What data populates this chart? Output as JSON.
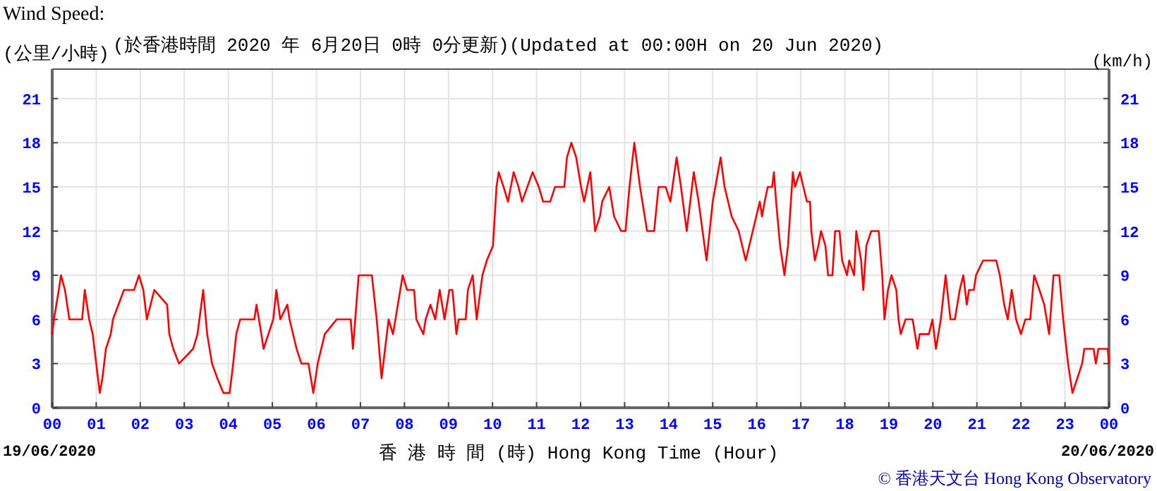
{
  "chart_data": {
    "type": "line",
    "title": "Wind Speed:",
    "subtitle": "(於香港時間 2020 年 6月20日 0時 0分更新)(Updated at 00:00H on 20 Jun 2020)",
    "ylabel": "(公里/小時)",
    "y2label": "(km/h)",
    "xlabel": "香 港 時 間 (時) Hong Kong Time (Hour)",
    "annotations": [
      "19/06/2020",
      "20/06/2020",
      "© 香港天文台 Hong Kong Observatory"
    ],
    "x": [
      0,
      0.04,
      0.15,
      0.2,
      0.29,
      0.39,
      0.68,
      0.74,
      0.84,
      0.92,
      1.0,
      1.08,
      1.14,
      1.22,
      1.33,
      1.38,
      1.63,
      1.86,
      1.97,
      2.07,
      2.15,
      2.32,
      2.61,
      2.66,
      2.75,
      2.88,
      3.2,
      3.3,
      3.43,
      3.52,
      3.63,
      3.75,
      3.89,
      4.03,
      4.11,
      4.18,
      4.27,
      4.59,
      4.64,
      4.75,
      4.8,
      4.91,
      5.02,
      5.09,
      5.18,
      5.34,
      5.39,
      5.55,
      5.66,
      5.82,
      5.93,
      6.03,
      6.19,
      6.46,
      6.78,
      6.83,
      6.96,
      7.26,
      7.37,
      7.48,
      7.64,
      7.74,
      7.96,
      8.06,
      8.11,
      8.22,
      8.27,
      8.43,
      8.48,
      8.59,
      8.7,
      8.8,
      8.91,
      9.02,
      9.09,
      9.18,
      9.23,
      9.39,
      9.44,
      9.55,
      9.64,
      9.77,
      9.87,
      10.01,
      10.09,
      10.14,
      10.25,
      10.35,
      10.48,
      10.59,
      10.67,
      10.91,
      11.05,
      11.15,
      11.31,
      11.42,
      11.63,
      11.69,
      11.79,
      11.9,
      12.01,
      12.08,
      12.22,
      12.33,
      12.44,
      12.49,
      12.65,
      12.76,
      12.92,
      13.02,
      13.11,
      13.22,
      13.35,
      13.51,
      13.67,
      13.77,
      13.93,
      14.04,
      14.18,
      14.28,
      14.41,
      14.57,
      14.68,
      14.86,
      15.0,
      15.18,
      15.27,
      15.43,
      15.59,
      15.75,
      15.91,
      16.07,
      16.12,
      16.18,
      16.25,
      16.35,
      16.39,
      16.44,
      16.53,
      16.63,
      16.71,
      16.82,
      16.87,
      16.98,
      17.06,
      17.14,
      17.21,
      17.24,
      17.32,
      17.4,
      17.46,
      17.56,
      17.62,
      17.72,
      17.78,
      17.88,
      17.94,
      18.05,
      18.1,
      18.21,
      18.26,
      18.37,
      18.42,
      18.49,
      18.6,
      18.77,
      18.85,
      18.9,
      18.98,
      19.06,
      19.17,
      19.22,
      19.27,
      19.38,
      19.54,
      19.65,
      19.7,
      19.91,
      19.99,
      20.07,
      20.18,
      20.29,
      20.4,
      20.5,
      20.61,
      20.69,
      20.77,
      20.82,
      20.93,
      20.98,
      21.14,
      21.44,
      21.52,
      21.62,
      21.7,
      21.79,
      21.89,
      22.0,
      22.1,
      22.21,
      22.3,
      22.42,
      22.53,
      22.64,
      22.74,
      22.87,
      22.96,
      23.07,
      23.17,
      23.28,
      23.39,
      23.44,
      23.65,
      23.7,
      23.76,
      23.97,
      24.0
    ],
    "series": [
      {
        "color": "#ff0000",
        "values": [
          5,
          6,
          8,
          9,
          8,
          6,
          6,
          8,
          6,
          5,
          3,
          1,
          2,
          4,
          5,
          6,
          8,
          8,
          9,
          8,
          6,
          8,
          7,
          5,
          4,
          3,
          4,
          5,
          8,
          5,
          3,
          2,
          1,
          1,
          3,
          5,
          6,
          6,
          7,
          5,
          4,
          5,
          6,
          8,
          6,
          7,
          6,
          4,
          3,
          3,
          1,
          3,
          5,
          6,
          6,
          4,
          9,
          9,
          6,
          2,
          6,
          5,
          9,
          8,
          8,
          8,
          6,
          5,
          6,
          7,
          6,
          8,
          6,
          8,
          8,
          5,
          6,
          6,
          8,
          9,
          6,
          9,
          10,
          11,
          15,
          16,
          15,
          14,
          16,
          15,
          14,
          16,
          15,
          14,
          14,
          15,
          15,
          17,
          18,
          17,
          15,
          14,
          16,
          12,
          13,
          14,
          15,
          13,
          12,
          12,
          15,
          18,
          15,
          12,
          12,
          15,
          15,
          14,
          17,
          15,
          12,
          16,
          14,
          10,
          14,
          17,
          15,
          13,
          12,
          10,
          12,
          14,
          13,
          14,
          15,
          15,
          16,
          14,
          11,
          9,
          11,
          16,
          15,
          16,
          15,
          14,
          14,
          12,
          10,
          11,
          12,
          11,
          9,
          9,
          12,
          12,
          10,
          9,
          10,
          9,
          12,
          10,
          8,
          11,
          12,
          12,
          9,
          6,
          8,
          9,
          8,
          6,
          5,
          6,
          6,
          4,
          5,
          5,
          6,
          4,
          6,
          9,
          6,
          6,
          8,
          9,
          7,
          8,
          8,
          9,
          10,
          10,
          9,
          7,
          6,
          8,
          6,
          5,
          6,
          6,
          9,
          8,
          7,
          5,
          9,
          9,
          6,
          3,
          1,
          2,
          3,
          4,
          4,
          3,
          4,
          4,
          3
        ]
      }
    ],
    "xlim": [
      0,
      24
    ],
    "xticks": [
      {
        "value": 0,
        "label": "00"
      },
      {
        "value": 1,
        "label": "01"
      },
      {
        "value": 2,
        "label": "02"
      },
      {
        "value": 3,
        "label": "03"
      },
      {
        "value": 4,
        "label": "04"
      },
      {
        "value": 5,
        "label": "05"
      },
      {
        "value": 6,
        "label": "06"
      },
      {
        "value": 7,
        "label": "07"
      },
      {
        "value": 8,
        "label": "08"
      },
      {
        "value": 9,
        "label": "09"
      },
      10,
      11,
      12,
      13,
      14,
      15,
      16,
      17,
      18,
      19,
      20,
      21,
      22,
      23,
      {
        "value": 24,
        "label": "00"
      }
    ],
    "ylim": [
      0,
      23
    ],
    "yticks": [
      0,
      3,
      6,
      9,
      12,
      15,
      18,
      21
    ],
    "y2lim": [
      0,
      23
    ],
    "y2ticks": [
      0,
      3,
      6,
      9,
      12,
      15,
      18,
      21
    ],
    "grid": true,
    "marker": "none",
    "line_style": "solid"
  }
}
